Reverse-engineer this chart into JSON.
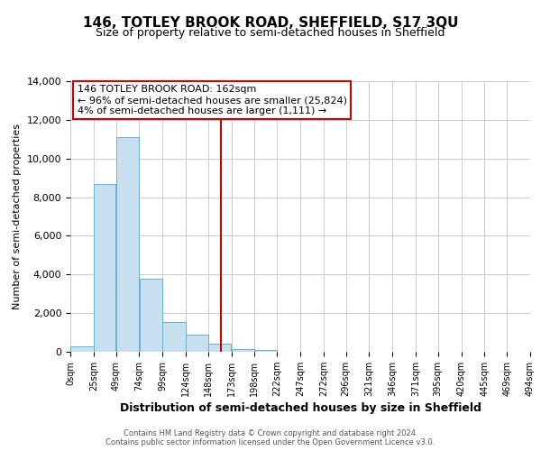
{
  "title": "146, TOTLEY BROOK ROAD, SHEFFIELD, S17 3QU",
  "subtitle": "Size of property relative to semi-detached houses in Sheffield",
  "xlabel": "Distribution of semi-detached houses by size in Sheffield",
  "ylabel": "Number of semi-detached properties",
  "bar_left_edges": [
    0,
    25,
    49,
    74,
    99,
    124,
    148,
    173,
    198,
    222,
    247,
    272,
    296,
    321,
    346,
    371,
    395,
    420,
    445,
    469
  ],
  "bar_widths": [
    25,
    24,
    25,
    25,
    25,
    24,
    25,
    25,
    24,
    25,
    25,
    24,
    25,
    25,
    25,
    24,
    25,
    25,
    24,
    25
  ],
  "bar_heights": [
    300,
    8700,
    11100,
    3800,
    1550,
    900,
    400,
    150,
    100,
    0,
    0,
    0,
    0,
    0,
    0,
    0,
    0,
    0,
    0,
    0
  ],
  "bar_color": "#c8dff0",
  "bar_edge_color": "#6aafd4",
  "tick_labels": [
    "0sqm",
    "25sqm",
    "49sqm",
    "74sqm",
    "99sqm",
    "124sqm",
    "148sqm",
    "173sqm",
    "198sqm",
    "222sqm",
    "247sqm",
    "272sqm",
    "296sqm",
    "321sqm",
    "346sqm",
    "371sqm",
    "395sqm",
    "420sqm",
    "445sqm",
    "469sqm",
    "494sqm"
  ],
  "tick_positions": [
    0,
    25,
    49,
    74,
    99,
    124,
    148,
    173,
    198,
    222,
    247,
    272,
    296,
    321,
    346,
    371,
    395,
    420,
    445,
    469,
    494
  ],
  "vline_x": 162,
  "vline_color": "#cc0000",
  "ylim": [
    0,
    14000
  ],
  "xlim": [
    0,
    494
  ],
  "yticks": [
    0,
    2000,
    4000,
    6000,
    8000,
    10000,
    12000,
    14000
  ],
  "annotation_title": "146 TOTLEY BROOK ROAD: 162sqm",
  "annotation_line1": "← 96% of semi-detached houses are smaller (25,824)",
  "annotation_line2": "4% of semi-detached houses are larger (1,111) →",
  "annotation_box_color": "#ffffff",
  "annotation_box_edge": "#cc0000",
  "footer1": "Contains HM Land Registry data © Crown copyright and database right 2024.",
  "footer2": "Contains public sector information licensed under the Open Government Licence v3.0.",
  "background_color": "#ffffff",
  "grid_color": "#cccccc"
}
